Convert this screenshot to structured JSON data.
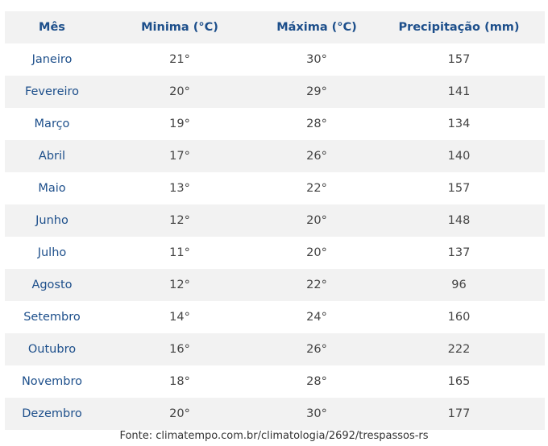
{
  "table": {
    "header": [
      "Mês",
      "Minima (°C)",
      "Máxima (°C)",
      "Precipitação (mm)"
    ],
    "rows": [
      [
        "Janeiro",
        "21°",
        "30°",
        "157"
      ],
      [
        "Fevereiro",
        "20°",
        "29°",
        "141"
      ],
      [
        "Março",
        "19°",
        "28°",
        "134"
      ],
      [
        "Abril",
        "17°",
        "26°",
        "140"
      ],
      [
        "Maio",
        "13°",
        "22°",
        "157"
      ],
      [
        "Junho",
        "12°",
        "20°",
        "148"
      ],
      [
        "Julho",
        "11°",
        "20°",
        "137"
      ],
      [
        "Agosto",
        "12°",
        "22°",
        "96"
      ],
      [
        "Setembro",
        "14°",
        "24°",
        "160"
      ],
      [
        "Outubro",
        "16°",
        "26°",
        "222"
      ],
      [
        "Novembro",
        "18°",
        "28°",
        "165"
      ],
      [
        "Dezembro",
        "20°",
        "30°",
        "177"
      ]
    ]
  },
  "source": "Fonte: climatempo.com.br/climatologia/2692/trespassos-rs"
}
